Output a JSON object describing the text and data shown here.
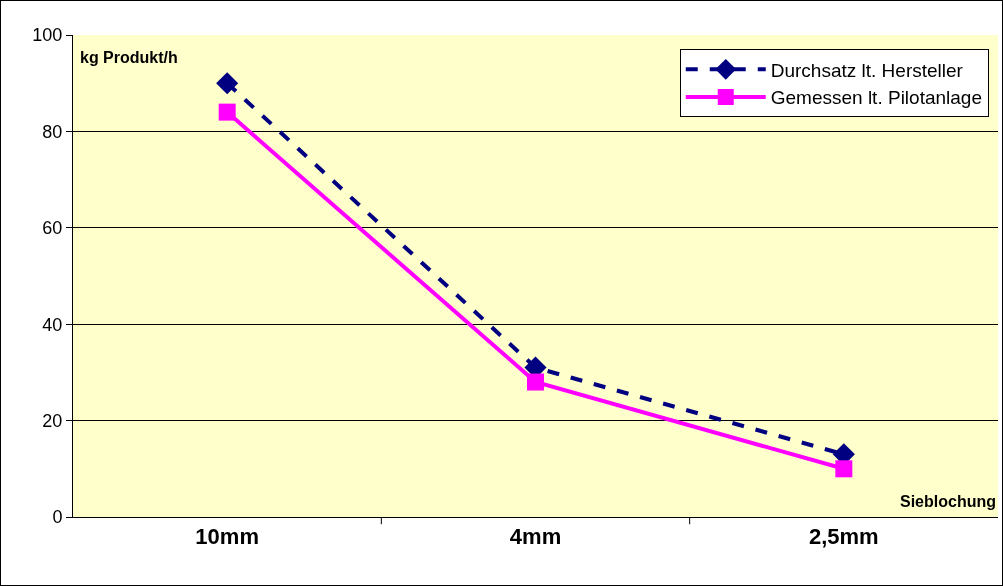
{
  "chart_data": {
    "type": "line",
    "ylabel": "kg Produkt/h",
    "xlabel": "Sieblochung",
    "categories": [
      "10mm",
      "4mm",
      "2,5mm"
    ],
    "series": [
      {
        "name": "Durchsatz lt. Hersteller",
        "color": "#000080",
        "values": [
          90,
          31,
          13
        ],
        "marker": "diamond",
        "line_style": "dashed"
      },
      {
        "name": "Gemessen lt. Pilotanlage",
        "color": "#ff00ff",
        "values": [
          84,
          28,
          10
        ],
        "marker": "square",
        "line_style": "solid"
      }
    ],
    "ylim": [
      0,
      100
    ],
    "yticks": [
      0,
      20,
      40,
      60,
      80,
      100
    ],
    "grid": "y",
    "legend": "top right"
  }
}
